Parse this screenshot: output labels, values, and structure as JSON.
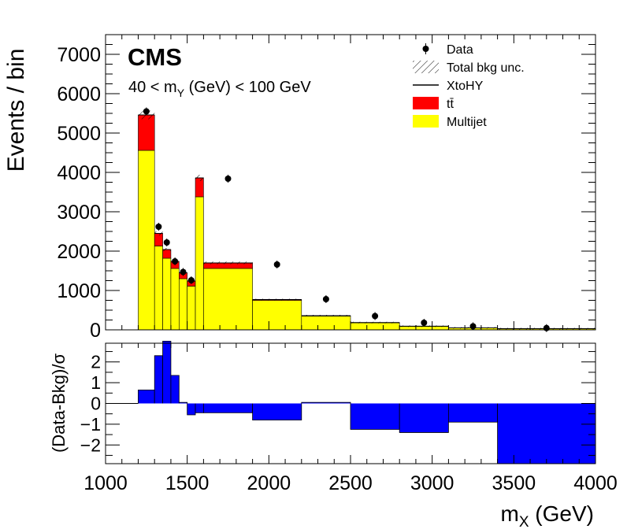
{
  "chart_data": [
    {
      "type": "bar",
      "panel": "main",
      "histogram_style": "stacked",
      "label": "CMS",
      "subtitle_text": "40 < m",
      "subtitle_sub": "Y",
      "subtitle_tail": " (GeV) < 100 GeV",
      "ylabel": "Events / bin",
      "xlim": [
        1000,
        4000
      ],
      "ylim": [
        0,
        7500
      ],
      "yticks": [
        0,
        1000,
        2000,
        3000,
        4000,
        5000,
        6000,
        7000
      ],
      "bin_edges": [
        1200,
        1300,
        1350,
        1400,
        1450,
        1500,
        1550,
        1600,
        1900,
        2200,
        2500,
        2800,
        3100,
        3400,
        4000
      ],
      "series": [
        {
          "name": "Multijet",
          "color": "#ffff00",
          "values": [
            4560,
            2130,
            1820,
            1560,
            1300,
            1110,
            3380,
            1560,
            750,
            350,
            180,
            90,
            50,
            30
          ]
        },
        {
          "name": "tt̄",
          "color": "#ff0000",
          "values": [
            900,
            320,
            220,
            180,
            150,
            130,
            480,
            140,
            20,
            10,
            5,
            2,
            1,
            1
          ]
        }
      ],
      "data": {
        "name": "Data",
        "x": [
          1250,
          1325,
          1375,
          1425,
          1475,
          1525,
          1750,
          2050,
          2350,
          2650,
          2950,
          3250,
          3700
        ],
        "y": [
          5550,
          2620,
          2220,
          1740,
          1470,
          1260,
          3840,
          1660,
          780,
          350,
          180,
          90,
          45
        ]
      },
      "legend": {
        "position": "top-right",
        "entries": [
          {
            "label": "Data",
            "kind": "marker"
          },
          {
            "label": "Total bkg unc.",
            "kind": "hatch"
          },
          {
            "label": "XtoHY",
            "kind": "line"
          },
          {
            "label": "tt̄",
            "kind": "fill",
            "color": "#ff0000"
          },
          {
            "label": "Multijet",
            "kind": "fill",
            "color": "#ffff00"
          }
        ]
      }
    },
    {
      "type": "bar",
      "panel": "ratio",
      "ylabel": "(Data-Bkg)/σ",
      "xlabel_text": "m",
      "xlabel_sub": "X",
      "xlabel_tail": " (GeV)",
      "xlim": [
        1000,
        4000
      ],
      "ylim": [
        -2.9,
        2.9
      ],
      "yticks": [
        -2,
        -1,
        0,
        1,
        2
      ],
      "xticks": [
        1000,
        1500,
        2000,
        2500,
        3000,
        3500,
        4000
      ],
      "bin_edges": [
        1200,
        1300,
        1350,
        1400,
        1450,
        1500,
        1550,
        1600,
        1900,
        2200,
        2500,
        2800,
        3100,
        3400,
        4000
      ],
      "values": [
        0.65,
        2.3,
        3.0,
        1.35,
        0.05,
        -0.55,
        -0.45,
        -0.45,
        -0.8,
        0.05,
        -1.25,
        -1.4,
        -0.9,
        -2.9
      ],
      "color": "#0000ff"
    }
  ]
}
